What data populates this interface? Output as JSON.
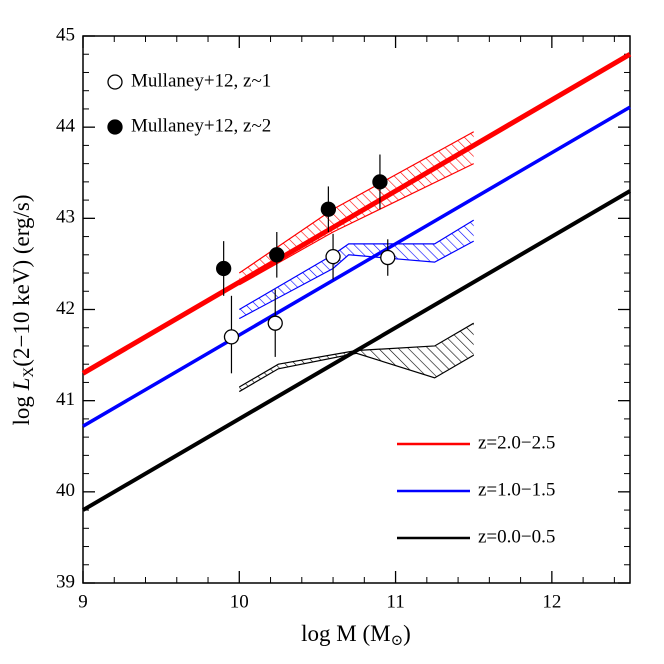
{
  "chart_data": {
    "type": "line",
    "xlabel_parts": [
      "log M  (M",
      "⊙",
      ")"
    ],
    "ylabel_parts": [
      "log ",
      "L",
      "X",
      "(2−10 keV)  (erg/s)"
    ],
    "xlim": [
      9,
      12.5
    ],
    "ylim": [
      39,
      45
    ],
    "xticks": [
      9,
      10,
      11,
      12
    ],
    "yticks": [
      39,
      40,
      41,
      42,
      43,
      44,
      45
    ],
    "xminorticks": [
      9.2,
      9.4,
      9.6,
      9.8,
      10.2,
      10.4,
      10.6,
      10.8,
      11.2,
      11.4,
      11.6,
      11.8,
      12.2,
      12.4
    ],
    "yminorticks": [
      39.2,
      39.4,
      39.6,
      39.8,
      40.2,
      40.4,
      40.6,
      40.8,
      41.2,
      41.4,
      41.6,
      41.8,
      42.2,
      42.4,
      42.6,
      42.8,
      43.2,
      43.4,
      43.6,
      43.8,
      44.2,
      44.4,
      44.6,
      44.8
    ],
    "series": [
      {
        "name": "z=2.0−2.5",
        "color": "#ff0000",
        "x": [
          9,
          12.5
        ],
        "values": [
          41.3,
          44.8
        ]
      },
      {
        "name": "z=1.0−1.5",
        "color": "#0000ff",
        "x": [
          9,
          12.5
        ],
        "values": [
          40.72,
          44.22
        ]
      },
      {
        "name": "z=0.0−0.5",
        "color": "#000000",
        "x": [
          9,
          12.5
        ],
        "values": [
          39.8,
          43.3
        ]
      }
    ],
    "bands": [
      {
        "color": "#ff0000",
        "x": [
          10,
          10.6,
          11.5
        ],
        "lower": [
          42.27,
          42.85,
          43.6
        ],
        "upper": [
          42.4,
          43.1,
          43.95
        ]
      },
      {
        "color": "#0000ff",
        "x": [
          10,
          10.6,
          10.7,
          11.25,
          11.5
        ],
        "lower": [
          41.9,
          42.45,
          42.6,
          42.52,
          42.75
        ],
        "upper": [
          42.0,
          42.6,
          42.72,
          42.72,
          42.98
        ]
      },
      {
        "color": "#000000",
        "x": [
          10,
          10.25,
          10.75,
          11.25,
          11.5
        ],
        "lower": [
          41.1,
          41.35,
          41.52,
          41.25,
          41.5
        ],
        "upper": [
          41.15,
          41.4,
          41.55,
          41.6,
          41.85
        ]
      }
    ],
    "points": [
      {
        "name": "Mullaney+12, z~1",
        "marker": "open",
        "x": [
          9.95,
          10.23,
          10.6,
          10.95
        ],
        "values": [
          41.7,
          41.85,
          42.58,
          42.57
        ],
        "err_low": [
          0.4,
          0.37,
          0.25,
          0.2
        ],
        "err_high": [
          0.45,
          0.37,
          0.25,
          0.2
        ]
      },
      {
        "name": "Mullaney+12, z~2",
        "marker": "filled",
        "x": [
          9.9,
          10.24,
          10.57,
          10.9
        ],
        "values": [
          42.45,
          42.6,
          43.1,
          43.4
        ],
        "err_low": [
          0.3,
          0.25,
          0.25,
          0.3
        ],
        "err_high": [
          0.3,
          0.25,
          0.25,
          0.3
        ]
      }
    ]
  }
}
